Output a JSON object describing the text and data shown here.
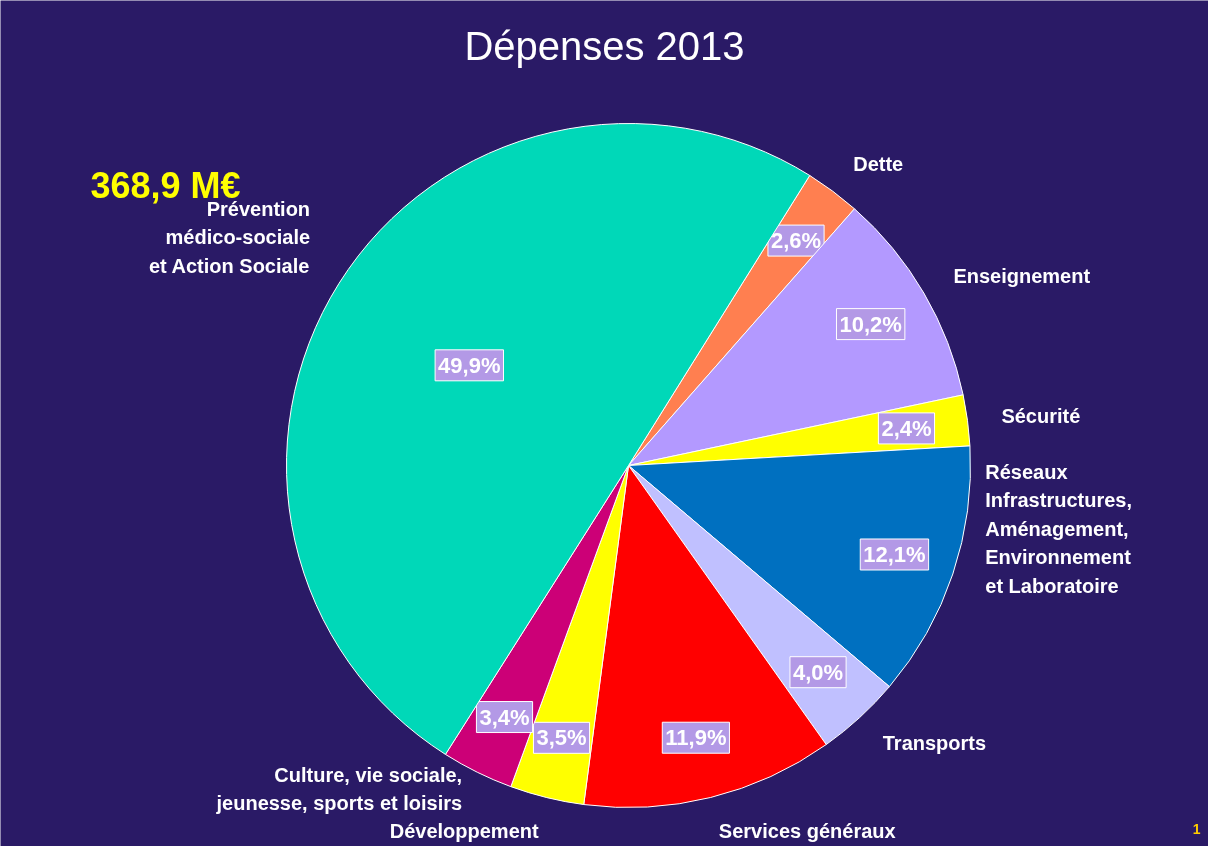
{
  "chart_data": {
    "type": "pie",
    "title": "Dépenses 2013",
    "categories": [
      "Dette",
      "Enseignement",
      "Sécurité",
      "Réseaux\nInfrastructures,\nAménagement,\nEnvironnement\net Laboratoire",
      "Transports",
      "Services généraux",
      "Développement",
      "Culture, vie sociale,\njeunesse, sports et loisirs",
      "Prévention\nmédico-sociale\net Action Sociale"
    ],
    "values": [
      2.6,
      10.2,
      2.4,
      12.1,
      4.0,
      11.9,
      3.5,
      3.4,
      49.9
    ],
    "value_labels": [
      "2,6%",
      "10,2%",
      "2,4%",
      "12,1%",
      "4,0%",
      "11,9%",
      "3,5%",
      "3,4%",
      "49,9%"
    ],
    "colors": [
      "#ff7f50",
      "#b399ff",
      "#ffff00",
      "#0070c0",
      "#c0c0ff",
      "#ff0000",
      "#ffff00",
      "#cc0077",
      "#00d8b8"
    ],
    "annotations": [
      "368,9 M€",
      "1"
    ]
  }
}
